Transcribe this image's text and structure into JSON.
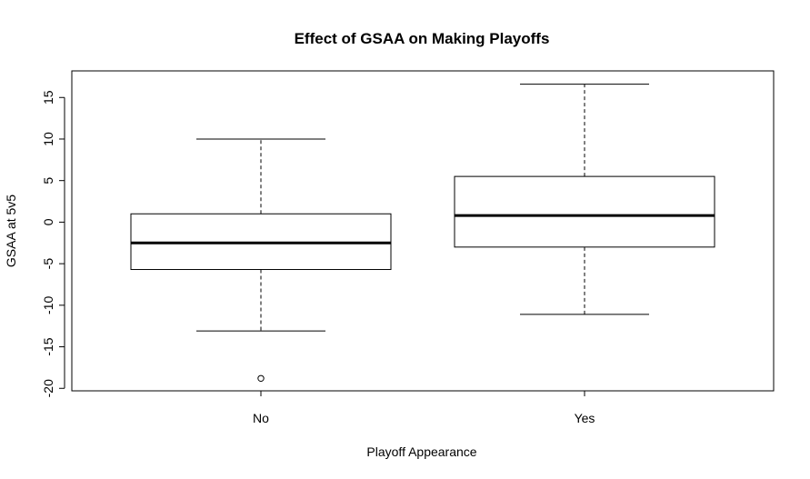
{
  "chart_data": {
    "type": "box",
    "title": "Effect of GSAA on Making Playoffs",
    "xlabel": "Playoff Appearance",
    "ylabel": "GSAA at 5v5",
    "ylim": [
      -20.3,
      18.2
    ],
    "yticks": [
      -20,
      -15,
      -10,
      -5,
      0,
      5,
      10,
      15
    ],
    "categories": [
      "No",
      "Yes"
    ],
    "boxes": [
      {
        "category": "No",
        "whisker_low": -13.1,
        "q1": -5.7,
        "median": -2.5,
        "q3": 1.0,
        "whisker_high": 10.0,
        "outliers": [
          -18.8
        ]
      },
      {
        "category": "Yes",
        "whisker_low": -11.1,
        "q1": -3.0,
        "median": 0.8,
        "q3": 5.5,
        "whisker_high": 16.6,
        "outliers": []
      }
    ],
    "grid": false,
    "legend": "none"
  }
}
